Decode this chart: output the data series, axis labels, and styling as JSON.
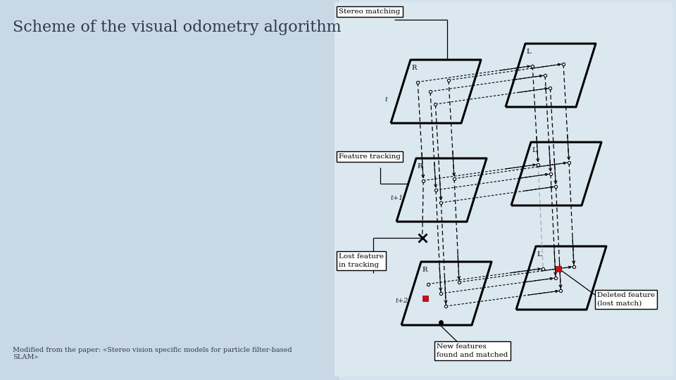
{
  "title": "Scheme of the visual odometry algorithm",
  "subtitle": "Modified from the paper: «Stereo vision specific models for particle filter-based\nSLAM»",
  "bg_color": "#ccdce8",
  "title_color": "#2d3a4a",
  "title_fontsize": 16,
  "subtitle_fontsize": 7,
  "diagram_bg": "#e0eaf2",
  "stereo_box": "Stereo matching",
  "tracking_box": "Feature tracking",
  "lost_box": "Lost feature\nin tracking",
  "new_feat_box": "New features\nfound and matched",
  "deleted_box": "Deleted feature\n(lost match)"
}
